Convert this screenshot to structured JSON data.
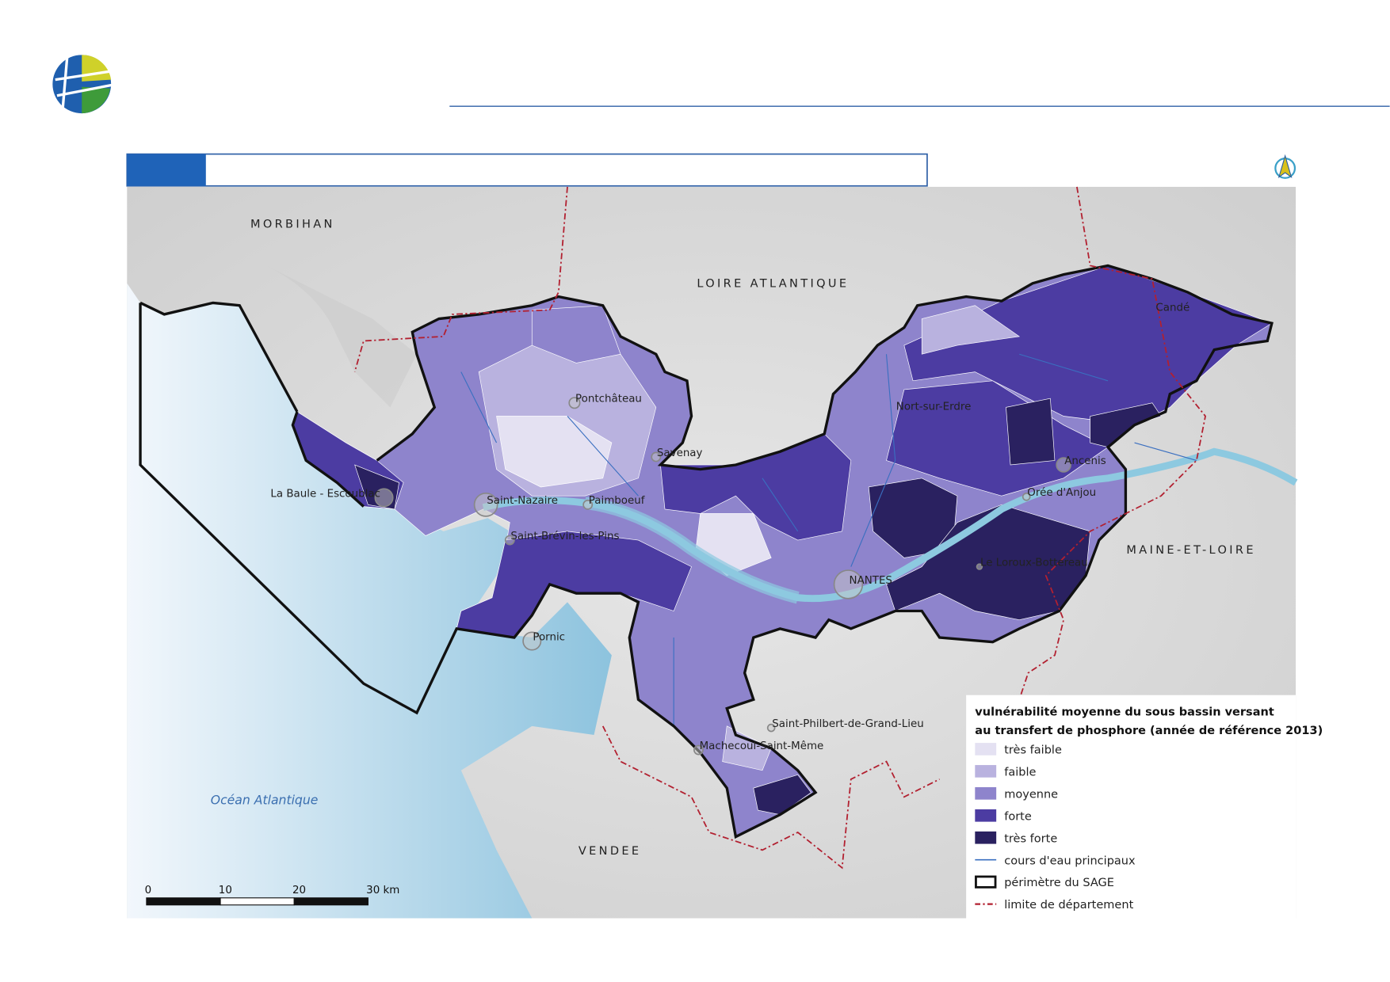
{
  "map": {
    "regions": [
      "MORBIHAN",
      "LOIRE ATLANTIQUE",
      "MAINE-ET-LOIRE",
      "VENDEE"
    ],
    "sea": "Océan Atlantique",
    "cities": [
      "Candé",
      "Pontchâteau",
      "Nort-sur-Erdre",
      "Savenay",
      "Ancenis",
      "La Baule - Escoublac",
      "Saint-Nazaire",
      "Paimboeuf",
      "Orée d'Anjou",
      "Saint-Brévin-les-Pins",
      "NANTES",
      "Le Loroux-Bottereau",
      "Pornic",
      "Saint-Philbert-de-Grand-Lieu",
      "Machecoul-Saint-Même"
    ]
  },
  "legend": {
    "title": "vulnérabilité moyenne du sous bassin versant",
    "subtitle": "au transfert de phosphore (année de référence 2013)",
    "classes": [
      {
        "label": "très faible",
        "color": "#e4e1f2"
      },
      {
        "label": "faible",
        "color": "#b9b2df"
      },
      {
        "label": "moyenne",
        "color": "#8e84cc"
      },
      {
        "label": "forte",
        "color": "#4c3ca2"
      },
      {
        "label": "très forte",
        "color": "#2a2160"
      }
    ],
    "lines": [
      "cours d'eau principaux",
      "périmètre du SAGE",
      "limite de département"
    ]
  },
  "scale_bar": {
    "ticks": [
      0,
      10,
      20,
      {
        "value": 30,
        "label": "30 km"
      }
    ]
  }
}
